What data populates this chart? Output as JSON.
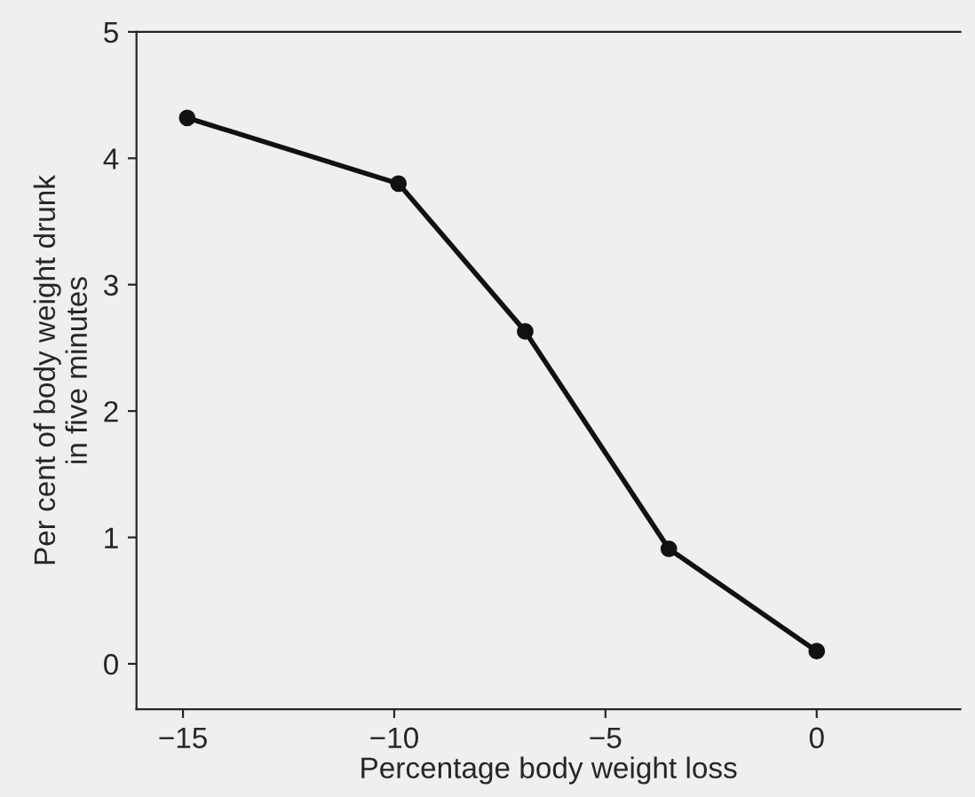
{
  "chart_data": {
    "type": "line",
    "xlabel": "Percentage body weight loss",
    "ylabel": "Per cent of body weight drunk\nin five minutes",
    "x": [
      -14.9,
      -9.9,
      -6.9,
      -3.5,
      0
    ],
    "series": [
      {
        "color": "#111111",
        "values": [
          4.32,
          3.8,
          2.63,
          0.91,
          0.1
        ]
      }
    ],
    "xlim": [
      -16.1,
      3.4
    ],
    "xticks": [
      -15,
      -10,
      -5,
      0
    ],
    "ylim": [
      -0.36,
      5
    ],
    "yticks": [
      0,
      1,
      2,
      3,
      4,
      5
    ],
    "marker": "circle",
    "line_style": "solid",
    "grid": false,
    "legend": false
  }
}
